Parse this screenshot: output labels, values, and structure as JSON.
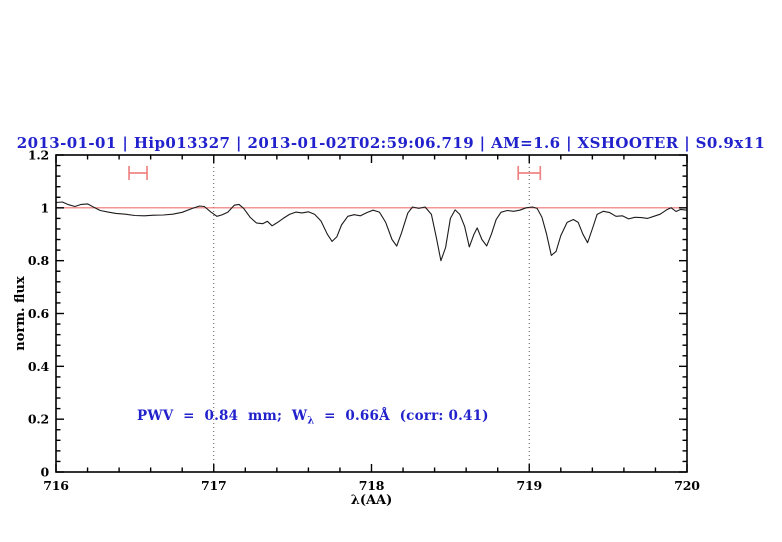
{
  "title": {
    "text": "2013-01-01 | Hip013327 | 2013-01-02T02:59:06.719 | AM=1.6 | XSHOOTER | S0.9x11"
  },
  "annotation": {
    "prefix": "PWV  =  0.84  mm;  W",
    "subscript": "λ",
    "suffix": "  =  0.66Å  (corr: 0.41)"
  },
  "colors": {
    "accent_blue": "#2222cc",
    "continuum_red": "#ee7272",
    "marker_red": "#ee8585",
    "spectrum_black": "#1c1c1c",
    "dotted_line_gray": "#555555",
    "frame_black": "#000000"
  },
  "chart_data": {
    "type": "line",
    "title": "2013-01-01 | Hip013327 | 2013-01-02T02:59:06.719 | AM=1.6 | XSHOOTER | S0.9x11",
    "xlabel": "λ(AA)",
    "ylabel": "norm. flux",
    "xlim": [
      716,
      720
    ],
    "ylim": [
      0,
      1.2
    ],
    "grid": "off",
    "legend": "none",
    "x_major_ticks": [
      716,
      717,
      718,
      719,
      720
    ],
    "x_tick_labels": [
      "716",
      "717",
      "718",
      "719",
      "720"
    ],
    "x_minor_step": 0.2,
    "y_major_ticks": [
      0,
      0.2,
      0.4,
      0.6,
      0.8,
      1,
      1.2
    ],
    "y_tick_labels": [
      "0",
      "0.2",
      "0.4",
      "0.6",
      "0.8",
      "1",
      "1.2"
    ],
    "y_minor_step": 0.04,
    "dotted_vlines": [
      717,
      719
    ],
    "continuum_line": {
      "y": 1.0
    },
    "interval_markers": [
      {
        "center": 716.52,
        "halfwidth": 0.057,
        "y": 1.132
      },
      {
        "center": 719.0,
        "halfwidth": 0.07,
        "y": 1.132
      }
    ],
    "series": [
      {
        "name": "spectrum",
        "x": [
          716.0,
          716.04,
          716.08,
          716.12,
          716.16,
          716.2,
          716.24,
          716.28,
          716.33,
          716.38,
          716.44,
          716.5,
          716.56,
          716.62,
          716.68,
          716.74,
          716.8,
          716.86,
          716.91,
          716.94,
          716.98,
          717.02,
          717.05,
          717.09,
          717.13,
          717.16,
          717.19,
          717.23,
          717.27,
          717.31,
          717.34,
          717.37,
          717.4,
          717.44,
          717.48,
          717.52,
          717.56,
          717.6,
          717.64,
          717.68,
          717.72,
          717.75,
          717.78,
          717.81,
          717.85,
          717.89,
          717.93,
          717.97,
          718.01,
          718.05,
          718.09,
          718.13,
          718.16,
          718.19,
          718.23,
          718.26,
          718.3,
          718.34,
          718.38,
          718.41,
          718.44,
          718.47,
          718.5,
          718.53,
          718.56,
          718.59,
          718.62,
          718.65,
          718.67,
          718.7,
          718.73,
          718.76,
          718.79,
          718.82,
          718.86,
          718.9,
          718.94,
          718.98,
          719.02,
          719.05,
          719.08,
          719.11,
          719.14,
          719.17,
          719.2,
          719.24,
          719.28,
          719.31,
          719.34,
          719.37,
          719.4,
          719.43,
          719.47,
          719.51,
          719.55,
          719.59,
          719.63,
          719.67,
          719.71,
          719.75,
          719.79,
          719.83,
          719.87,
          719.9,
          719.93,
          719.96,
          720.0
        ],
        "y": [
          1.02,
          1.022,
          1.012,
          1.005,
          1.013,
          1.015,
          1.002,
          0.99,
          0.984,
          0.979,
          0.976,
          0.971,
          0.97,
          0.972,
          0.973,
          0.976,
          0.983,
          0.997,
          1.007,
          1.005,
          0.985,
          0.968,
          0.973,
          0.984,
          1.01,
          1.013,
          0.998,
          0.965,
          0.943,
          0.94,
          0.949,
          0.932,
          0.943,
          0.96,
          0.975,
          0.984,
          0.981,
          0.985,
          0.975,
          0.95,
          0.9,
          0.873,
          0.89,
          0.935,
          0.968,
          0.974,
          0.97,
          0.982,
          0.991,
          0.984,
          0.945,
          0.88,
          0.855,
          0.905,
          0.98,
          1.003,
          0.998,
          1.003,
          0.975,
          0.89,
          0.8,
          0.85,
          0.96,
          0.992,
          0.975,
          0.93,
          0.852,
          0.9,
          0.924,
          0.88,
          0.856,
          0.9,
          0.955,
          0.983,
          0.99,
          0.987,
          0.991,
          1.0,
          1.003,
          0.998,
          0.965,
          0.9,
          0.82,
          0.835,
          0.895,
          0.945,
          0.956,
          0.945,
          0.9,
          0.868,
          0.92,
          0.975,
          0.987,
          0.982,
          0.968,
          0.97,
          0.958,
          0.964,
          0.963,
          0.96,
          0.968,
          0.976,
          0.992,
          1.0,
          0.986,
          0.994,
          0.991
        ]
      }
    ]
  }
}
